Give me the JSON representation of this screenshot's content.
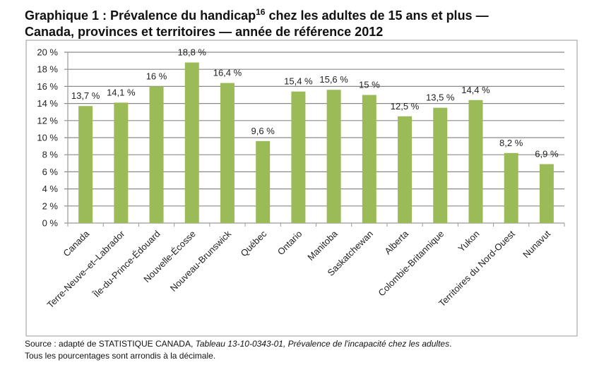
{
  "chart_data": {
    "type": "bar",
    "title_line1": "Graphique 1 : Prévalence du handicap",
    "title_superscript": "16",
    "title_line1_rest": " chez les adultes de 15 ans et plus —",
    "title_line2": "Canada, provinces et territoires — année de référence 2012",
    "categories": [
      "Canada",
      "Terre-Neuve–et–Labrador",
      "Île-du-Prince-Édouard",
      "Nouvelle-Écosse",
      "Nouveau-Brunswick",
      "Québec",
      "Ontario",
      "Manitoba",
      "Saskatchewan",
      "Alberta",
      "Colombie-Britannique",
      "Yukon",
      "Territoires du Nord-Ouest",
      "Nunavut"
    ],
    "values": [
      13.7,
      14.1,
      16,
      18.8,
      16.4,
      9.6,
      15.4,
      15.6,
      15,
      12.5,
      13.5,
      14.4,
      8.2,
      6.9
    ],
    "data_labels": [
      "13,7 %",
      "14,1 %",
      "16 %",
      "18,8 %",
      "16,4 %",
      "9,6 %",
      "15,4 %",
      "15,6 %",
      "15 %",
      "12,5 %",
      "13,5 %",
      "14,4 %",
      "8,2 %",
      "6,9 %"
    ],
    "y_ticks": [
      "0 %",
      "2 %",
      "4 %",
      "6 %",
      "8 %",
      "10 %",
      "12 %",
      "14 %",
      "16 %",
      "18 %",
      "20 %"
    ],
    "ylim": [
      0,
      20
    ],
    "xlabel": "",
    "ylabel": "",
    "grid": true,
    "legend": "none",
    "bar_color": "#9BBB59"
  },
  "source": {
    "prefix": "Source : adapté de STATISTIQUE CANADA, ",
    "table": "Tableau  13-10-0343-01, Prévalence de l'incapacité chez les adultes",
    "suffix": ".",
    "note": "Tous les pourcentages sont arrondis à la décimale."
  }
}
